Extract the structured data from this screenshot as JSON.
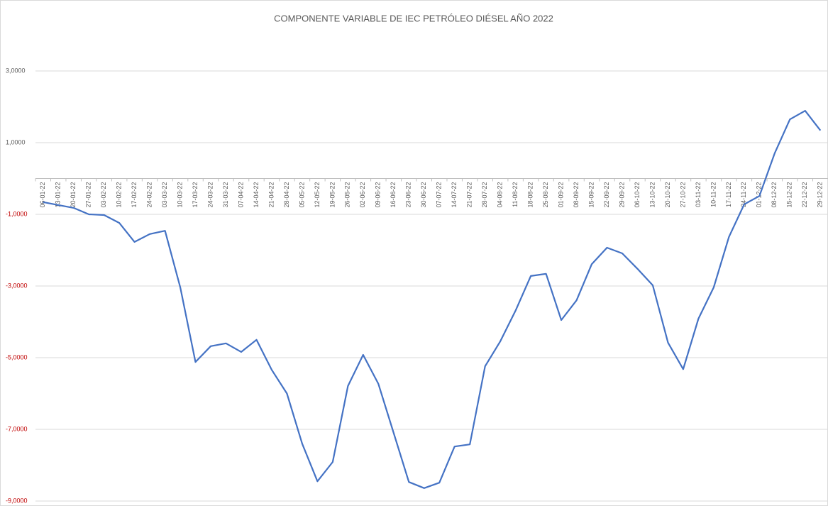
{
  "chart_data": {
    "type": "line",
    "title": "COMPONENTE VARIABLE DE IEC PETRÓLEO DIÉSEL AÑO 2022",
    "categories": [
      "06-01-22",
      "13-01-22",
      "20-01-22",
      "27-01-22",
      "03-02-22",
      "10-02-22",
      "17-02-22",
      "24-02-22",
      "03-03-22",
      "10-03-22",
      "17-03-22",
      "24-03-22",
      "31-03-22",
      "07-04-22",
      "14-04-22",
      "21-04-22",
      "28-04-22",
      "05-05-22",
      "12-05-22",
      "19-05-22",
      "26-05-22",
      "02-06-22",
      "09-06-22",
      "16-06-22",
      "23-06-22",
      "30-06-22",
      "07-07-22",
      "14-07-22",
      "21-07-22",
      "28-07-22",
      "04-08-22",
      "11-08-22",
      "18-08-22",
      "25-08-22",
      "01-09-22",
      "08-09-22",
      "15-09-22",
      "22-09-22",
      "29-09-22",
      "06-10-22",
      "13-10-22",
      "20-10-22",
      "27-10-22",
      "03-11-22",
      "10-11-22",
      "17-11-22",
      "24-11-22",
      "01-12-22",
      "08-12-22",
      "15-12-22",
      "22-12-22",
      "29-12-22"
    ],
    "series": [
      {
        "color": "#4472c4",
        "values": [
          -0.66,
          -0.74,
          -0.82,
          -1.0,
          -1.02,
          -1.24,
          -1.77,
          -1.55,
          -1.46,
          -3.04,
          -5.12,
          -4.68,
          -4.6,
          -4.84,
          -4.5,
          -5.34,
          -6.0,
          -7.4,
          -8.45,
          -7.91,
          -5.79,
          -4.92,
          -5.73,
          -7.1,
          -8.47,
          -8.64,
          -8.49,
          -7.48,
          -7.42,
          -5.24,
          -4.54,
          -3.69,
          -2.72,
          -2.66,
          -3.95,
          -3.4,
          -2.39,
          -1.93,
          -2.09,
          -2.52,
          -2.98,
          -4.58,
          -5.32,
          -3.91,
          -3.04,
          -1.63,
          -0.72,
          -0.49,
          0.7,
          1.65,
          1.89,
          1.34
        ]
      }
    ],
    "ylim": [
      -9,
      4.2
    ],
    "yticks": [
      {
        "value": -9,
        "label": "-9,0000"
      },
      {
        "value": -7,
        "label": "-7,0000"
      },
      {
        "value": -5,
        "label": "-5,0000"
      },
      {
        "value": -3,
        "label": "-3,0000"
      },
      {
        "value": -1,
        "label": "-1,0000"
      },
      {
        "value": 1,
        "label": "1,0000"
      },
      {
        "value": 3,
        "label": "3,0000"
      }
    ],
    "grid": true,
    "negative_tick_color": "#c00000"
  }
}
